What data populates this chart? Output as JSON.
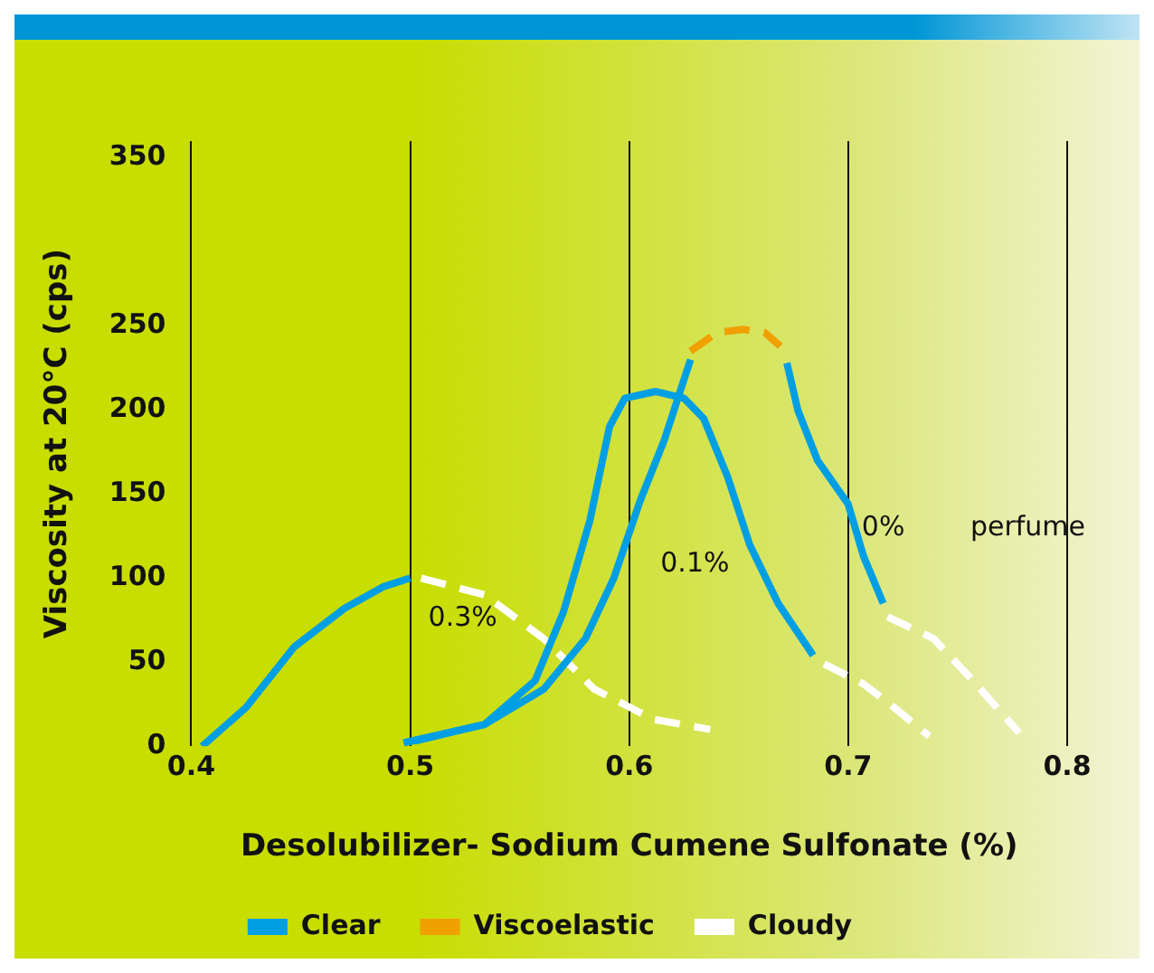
{
  "chart_data": {
    "type": "line",
    "xlabel": "Desolubilizer- Sodium Cumene Sulfonate (%)",
    "ylabel": "Viscosity at 20°C (cps)",
    "xlim": [
      0.4,
      0.8
    ],
    "xticks": [
      0.4,
      0.5,
      0.6,
      0.7,
      0.8
    ],
    "ylim": [
      0,
      360
    ],
    "yticks": [
      0,
      50,
      100,
      150,
      200,
      250,
      350
    ],
    "grid": "x",
    "legend": "bottom",
    "line_style": "solid",
    "marker": "none",
    "series": [
      {
        "name": "Clear",
        "color": "#009fe3",
        "x": [
          0.405,
          0.425,
          0.447,
          0.47,
          0.488,
          0.5
        ],
        "values": [
          0,
          23,
          59,
          82,
          95,
          100
        ]
      },
      {
        "color": "#009fe3",
        "x": [
          0.497,
          0.534,
          0.557,
          0.57,
          0.582,
          0.591,
          0.598,
          0.612,
          0.625,
          0.634,
          0.645,
          0.655,
          0.668,
          0.684
        ],
        "values": [
          2,
          13,
          39,
          80,
          134,
          190,
          207,
          211,
          207,
          195,
          160,
          120,
          85,
          54
        ]
      },
      {
        "color": "#009fe3",
        "x": [
          0.502,
          0.534,
          0.561,
          0.58,
          0.593,
          0.605,
          0.616,
          0.628
        ],
        "values": [
          3,
          13,
          34,
          64,
          100,
          146,
          182,
          230
        ]
      },
      {
        "color": "#009fe3",
        "x": [
          0.672,
          0.677,
          0.686,
          0.7,
          0.707,
          0.716
        ],
        "values": [
          228,
          200,
          170,
          144,
          113,
          85
        ]
      },
      {
        "name": "Viscoelastic",
        "color": "#f0a000",
        "line_style": "dashed",
        "x": [
          0.628,
          0.64,
          0.652,
          0.662,
          0.669
        ],
        "values": [
          235,
          246,
          248,
          246,
          238
        ]
      },
      {
        "name": "Cloudy",
        "color": "#ffffff",
        "line_style": "dashed",
        "x": [
          0.505,
          0.534,
          0.561,
          0.584,
          0.611,
          0.637
        ],
        "values": [
          100,
          90,
          64,
          34,
          16,
          10
        ]
      },
      {
        "color": "#ffffff",
        "line_style": "dashed",
        "x": [
          0.689,
          0.707,
          0.721,
          0.737
        ],
        "values": [
          49,
          37,
          23,
          6
        ]
      },
      {
        "color": "#ffffff",
        "line_style": "dashed",
        "x": [
          0.718,
          0.739,
          0.757,
          0.778
        ],
        "values": [
          77,
          64,
          39,
          8
        ]
      }
    ],
    "annotations": [
      "0.3%",
      "0.1%",
      "0%",
      "perfume"
    ]
  }
}
